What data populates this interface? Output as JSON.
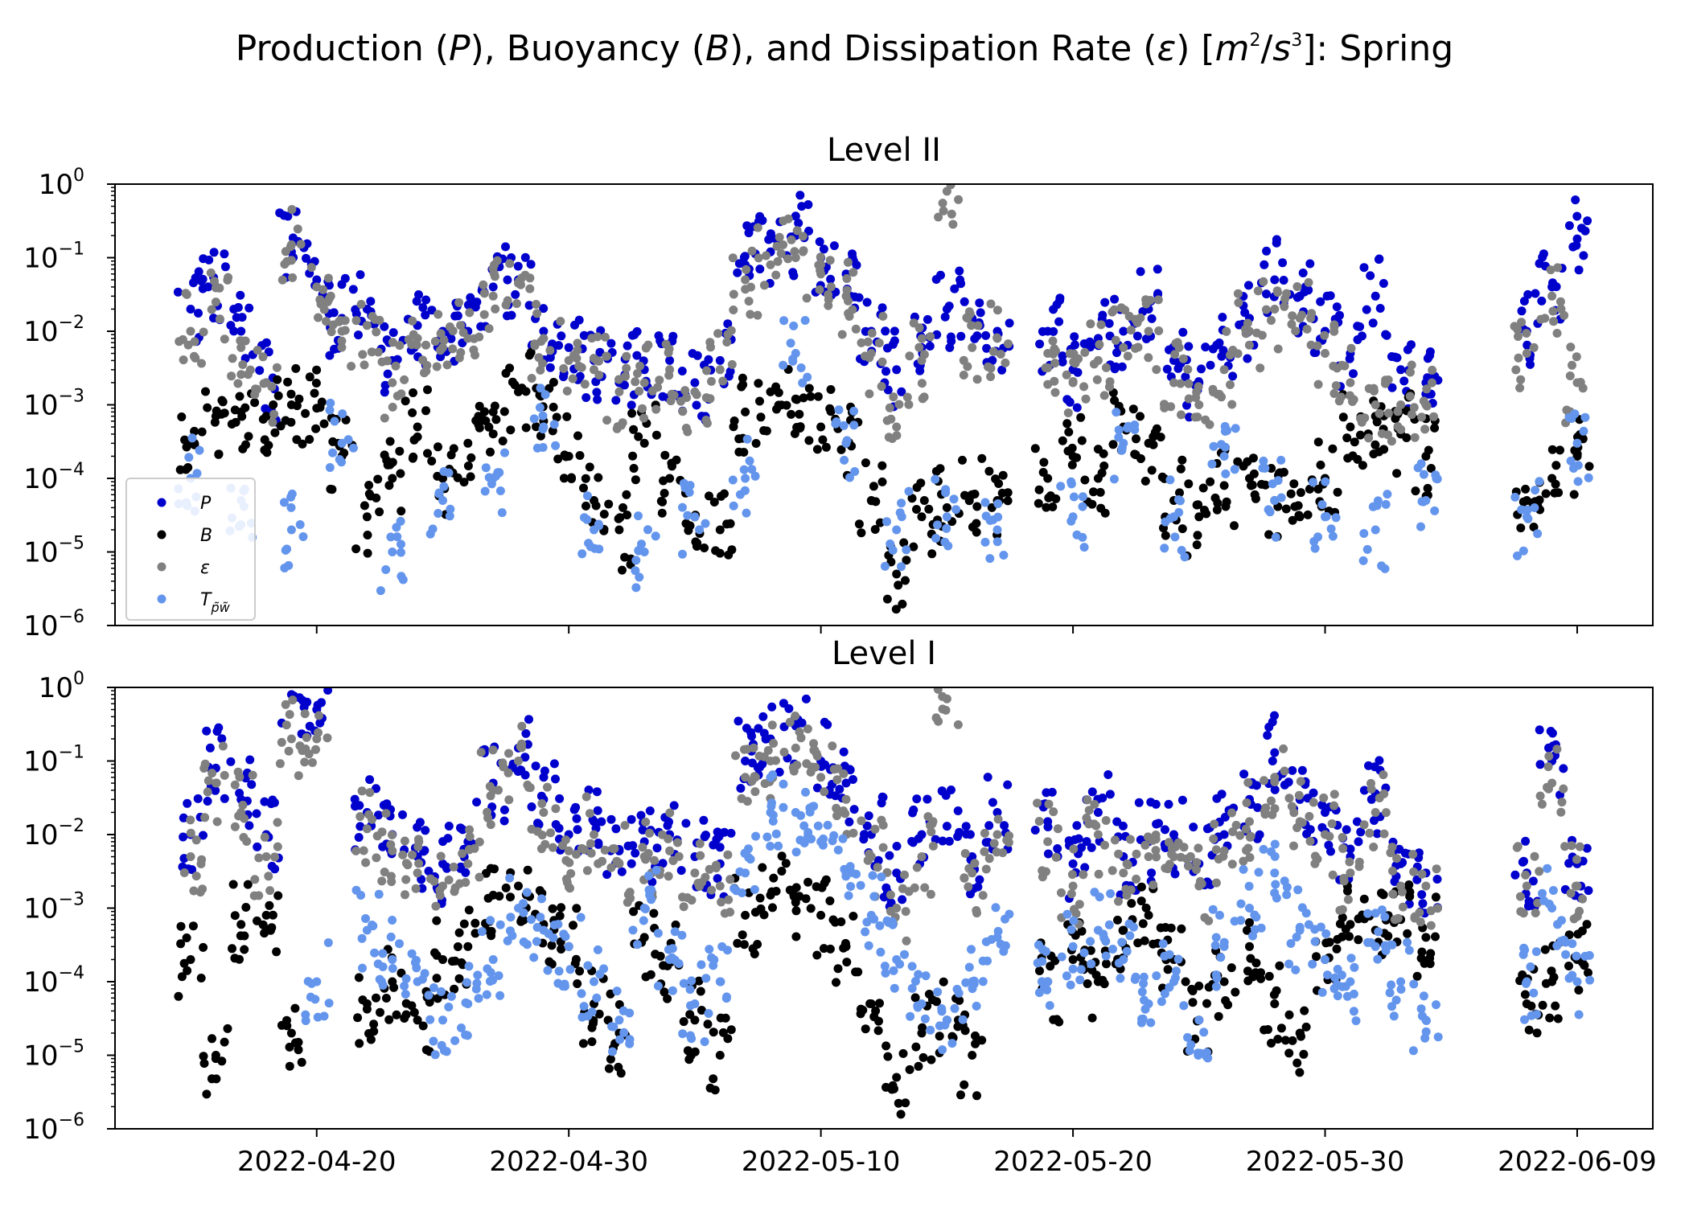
{
  "figure": {
    "title": "Production (P), Buoyancy (B), and Dissipation Rate (ε) [m²/s³]: Spring"
  },
  "chart_data": [
    {
      "type": "scatter",
      "title": "Level II",
      "xlabel": "",
      "ylabel": "",
      "yscale": "log",
      "ylim": [
        1e-06,
        1
      ],
      "xlim": [
        "2022-04-12",
        "2022-06-12"
      ],
      "x_ticks": [
        "2022-04-20",
        "2022-04-30",
        "2022-05-10",
        "2022-05-20",
        "2022-05-30",
        "2022-06-09"
      ],
      "y_ticks": [
        "10^0",
        "10^-1",
        "10^-2",
        "10^-3",
        "10^-4",
        "10^-5",
        "10^-6"
      ],
      "legend": {
        "position": "lower-left",
        "entries": [
          "P",
          "B",
          "ε",
          "T_{p̃w̃}"
        ]
      },
      "grid": false,
      "series": [
        {
          "name": "P",
          "color": "#0000cd",
          "x": [
            "2022-04-15",
            "2022-04-16",
            "2022-04-17",
            "2022-04-18",
            "2022-04-19",
            "2022-04-20",
            "2022-04-21",
            "2022-04-22",
            "2022-04-23",
            "2022-04-24",
            "2022-04-25",
            "2022-04-26",
            "2022-04-27",
            "2022-04-28",
            "2022-04-29",
            "2022-04-30",
            "2022-05-01",
            "2022-05-02",
            "2022-05-03",
            "2022-05-04",
            "2022-05-05",
            "2022-05-06",
            "2022-05-07",
            "2022-05-08",
            "2022-05-09",
            "2022-05-10",
            "2022-05-11",
            "2022-05-12",
            "2022-05-13",
            "2022-05-14",
            "2022-05-15",
            "2022-05-16",
            "2022-05-17",
            "2022-05-19",
            "2022-05-20",
            "2022-05-21",
            "2022-05-22",
            "2022-05-23",
            "2022-05-24",
            "2022-05-25",
            "2022-05-26",
            "2022-05-27",
            "2022-05-28",
            "2022-05-29",
            "2022-05-30",
            "2022-05-31",
            "2022-06-01",
            "2022-06-02",
            "2022-06-03",
            "2022-06-07",
            "2022-06-08",
            "2022-06-09"
          ],
          "y": [
            0.02,
            0.04,
            0.01,
            0.002,
            0.12,
            0.05,
            0.015,
            0.02,
            0.004,
            0.012,
            0.01,
            0.01,
            0.04,
            0.05,
            0.01,
            0.006,
            0.004,
            0.002,
            0.003,
            0.004,
            0.002,
            0.004,
            0.08,
            0.12,
            0.2,
            0.1,
            0.06,
            0.01,
            0.003,
            0.006,
            0.02,
            0.015,
            0.01,
            0.01,
            0.003,
            0.008,
            0.01,
            0.02,
            0.004,
            0.002,
            0.005,
            0.015,
            0.05,
            0.03,
            0.01,
            0.005,
            0.03,
            0.003,
            0.002,
            0.01,
            0.04,
            0.18
          ]
        },
        {
          "name": "B",
          "color": "#000000",
          "x": [
            "2022-04-15",
            "2022-04-16",
            "2022-04-17",
            "2022-04-18",
            "2022-04-19",
            "2022-04-20",
            "2022-04-21",
            "2022-04-22",
            "2022-04-23",
            "2022-04-24",
            "2022-04-25",
            "2022-04-26",
            "2022-04-27",
            "2022-04-28",
            "2022-04-29",
            "2022-04-30",
            "2022-05-01",
            "2022-05-02",
            "2022-05-03",
            "2022-05-04",
            "2022-05-05",
            "2022-05-06",
            "2022-05-07",
            "2022-05-08",
            "2022-05-09",
            "2022-05-10",
            "2022-05-11",
            "2022-05-12",
            "2022-05-13",
            "2022-05-14",
            "2022-05-15",
            "2022-05-16",
            "2022-05-17",
            "2022-05-19",
            "2022-05-20",
            "2022-05-21",
            "2022-05-22",
            "2022-05-23",
            "2022-05-24",
            "2022-05-25",
            "2022-05-26",
            "2022-05-27",
            "2022-05-28",
            "2022-05-29",
            "2022-05-30",
            "2022-05-31",
            "2022-06-01",
            "2022-06-02",
            "2022-06-03",
            "2022-06-07",
            "2022-06-08",
            "2022-06-09"
          ],
          "y": [
            0.0003,
            0.0007,
            0.0008,
            0.0007,
            0.001,
            0.0009,
            0.0002,
            3e-05,
            0.0001,
            0.0005,
            0.0001,
            0.0003,
            0.0008,
            0.0015,
            0.0006,
            0.0002,
            5e-05,
            2e-05,
            0.0003,
            0.0001,
            3e-05,
            2e-05,
            0.0008,
            0.0015,
            0.0012,
            0.0005,
            0.0003,
            5e-05,
            5e-06,
            3e-05,
            4e-05,
            6e-05,
            5e-05,
            0.0001,
            0.0002,
            0.0001,
            0.0005,
            0.0003,
            5e-05,
            3e-05,
            8e-05,
            0.0001,
            5e-05,
            3e-05,
            0.0001,
            0.0005,
            0.0007,
            0.0004,
            0.0002,
            5e-05,
            0.0001,
            0.0002
          ]
        },
        {
          "name": "ε",
          "color": "#808080",
          "x": [
            "2022-04-15",
            "2022-04-16",
            "2022-04-17",
            "2022-04-18",
            "2022-04-19",
            "2022-04-20",
            "2022-04-21",
            "2022-04-22",
            "2022-04-23",
            "2022-04-24",
            "2022-04-25",
            "2022-04-26",
            "2022-04-27",
            "2022-04-28",
            "2022-04-29",
            "2022-04-30",
            "2022-05-01",
            "2022-05-02",
            "2022-05-03",
            "2022-05-04",
            "2022-05-05",
            "2022-05-06",
            "2022-05-07",
            "2022-05-08",
            "2022-05-09",
            "2022-05-10",
            "2022-05-11",
            "2022-05-12",
            "2022-05-13",
            "2022-05-14",
            "2022-05-15",
            "2022-05-16",
            "2022-05-17",
            "2022-05-19",
            "2022-05-20",
            "2022-05-21",
            "2022-05-22",
            "2022-05-23",
            "2022-05-24",
            "2022-05-25",
            "2022-05-26",
            "2022-05-27",
            "2022-05-28",
            "2022-05-29",
            "2022-05-30",
            "2022-05-31",
            "2022-06-01",
            "2022-06-02",
            "2022-06-03",
            "2022-06-07",
            "2022-06-08",
            "2022-06-09"
          ],
          "y": [
            0.01,
            0.025,
            0.006,
            0.002,
            0.15,
            0.04,
            0.01,
            0.012,
            0.002,
            0.008,
            0.006,
            0.008,
            0.03,
            0.045,
            0.008,
            0.004,
            0.003,
            0.0015,
            0.002,
            0.003,
            0.0015,
            0.003,
            0.05,
            0.08,
            0.1,
            0.06,
            0.03,
            0.005,
            0.0005,
            0.004,
            0.8,
            0.006,
            0.008,
            0.005,
            0.002,
            0.004,
            0.006,
            0.01,
            0.002,
            0.001,
            0.003,
            0.01,
            0.02,
            0.015,
            0.005,
            0.002,
            0.001,
            0.001,
            0.001,
            0.005,
            0.03,
            0.002
          ]
        },
        {
          "name": "T_{p̃w̃}",
          "color": "#6495ed",
          "x": [
            "2022-04-15",
            "2022-04-17",
            "2022-04-19",
            "2022-04-21",
            "2022-04-23",
            "2022-04-25",
            "2022-04-27",
            "2022-04-29",
            "2022-05-01",
            "2022-05-03",
            "2022-05-05",
            "2022-05-07",
            "2022-05-09",
            "2022-05-11",
            "2022-05-13",
            "2022-05-15",
            "2022-05-17",
            "2022-05-20",
            "2022-05-22",
            "2022-05-24",
            "2022-05-26",
            "2022-05-28",
            "2022-05-30",
            "2022-06-01",
            "2022-06-03",
            "2022-06-07",
            "2022-06-09"
          ],
          "y": [
            0.0001,
            5e-05,
            2e-05,
            0.0003,
            1e-05,
            5e-05,
            0.0001,
            0.0005,
            2e-05,
            1e-05,
            3e-05,
            0.0001,
            0.005,
            0.0003,
            2e-05,
            3e-05,
            2e-05,
            3e-05,
            0.0003,
            3e-05,
            0.0002,
            5e-05,
            3e-05,
            2e-05,
            5e-05,
            3e-05,
            0.0003
          ]
        }
      ]
    },
    {
      "type": "scatter",
      "title": "Level I",
      "xlabel": "",
      "ylabel": "",
      "yscale": "log",
      "ylim": [
        1e-06,
        1
      ],
      "xlim": [
        "2022-04-12",
        "2022-06-12"
      ],
      "x_ticks": [
        "2022-04-20",
        "2022-04-30",
        "2022-05-10",
        "2022-05-20",
        "2022-05-30",
        "2022-06-09"
      ],
      "y_ticks": [
        "10^0",
        "10^-1",
        "10^-2",
        "10^-3",
        "10^-4",
        "10^-5",
        "10^-6"
      ],
      "grid": false,
      "series": [
        {
          "name": "P",
          "color": "#0000cd",
          "x": [
            "2022-04-15",
            "2022-04-16",
            "2022-04-17",
            "2022-04-18",
            "2022-04-19",
            "2022-04-20",
            "2022-04-22",
            "2022-04-23",
            "2022-04-24",
            "2022-04-25",
            "2022-04-26",
            "2022-04-27",
            "2022-04-28",
            "2022-04-29",
            "2022-04-30",
            "2022-05-01",
            "2022-05-02",
            "2022-05-03",
            "2022-05-04",
            "2022-05-05",
            "2022-05-06",
            "2022-05-07",
            "2022-05-08",
            "2022-05-09",
            "2022-05-10",
            "2022-05-11",
            "2022-05-12",
            "2022-05-13",
            "2022-05-14",
            "2022-05-15",
            "2022-05-16",
            "2022-05-17",
            "2022-05-19",
            "2022-05-20",
            "2022-05-21",
            "2022-05-22",
            "2022-05-23",
            "2022-05-24",
            "2022-05-25",
            "2022-05-26",
            "2022-05-27",
            "2022-05-28",
            "2022-05-29",
            "2022-05-30",
            "2022-05-31",
            "2022-06-01",
            "2022-06-02",
            "2022-06-03",
            "2022-06-07",
            "2022-06-08",
            "2022-06-09"
          ],
          "y": [
            0.01,
            0.08,
            0.03,
            0.01,
            0.8,
            0.5,
            0.02,
            0.01,
            0.005,
            0.004,
            0.008,
            0.05,
            0.15,
            0.03,
            0.01,
            0.015,
            0.006,
            0.008,
            0.01,
            0.005,
            0.004,
            0.1,
            0.2,
            0.3,
            0.1,
            0.05,
            0.01,
            0.003,
            0.01,
            0.013,
            0.005,
            0.02,
            0.015,
            0.004,
            0.02,
            0.005,
            0.008,
            0.01,
            0.004,
            0.01,
            0.03,
            0.13,
            0.03,
            0.02,
            0.005,
            0.036,
            0.004,
            0.003,
            0.003,
            0.1,
            0.004
          ]
        },
        {
          "name": "B",
          "color": "#000000",
          "x": [
            "2022-04-15",
            "2022-04-16",
            "2022-04-17",
            "2022-04-18",
            "2022-04-19",
            "2022-04-22",
            "2022-04-23",
            "2022-04-24",
            "2022-04-25",
            "2022-04-26",
            "2022-04-27",
            "2022-04-28",
            "2022-04-29",
            "2022-04-30",
            "2022-05-01",
            "2022-05-02",
            "2022-05-03",
            "2022-05-04",
            "2022-05-05",
            "2022-05-06",
            "2022-05-07",
            "2022-05-08",
            "2022-05-09",
            "2022-05-10",
            "2022-05-11",
            "2022-05-12",
            "2022-05-13",
            "2022-05-14",
            "2022-05-15",
            "2022-05-16",
            "2022-05-19",
            "2022-05-20",
            "2022-05-21",
            "2022-05-22",
            "2022-05-23",
            "2022-05-24",
            "2022-05-25",
            "2022-05-26",
            "2022-05-27",
            "2022-05-28",
            "2022-05-29",
            "2022-05-30",
            "2022-05-31",
            "2022-06-01",
            "2022-06-02",
            "2022-06-03",
            "2022-06-07",
            "2022-06-08",
            "2022-06-09"
          ],
          "y": [
            0.0002,
            1e-05,
            0.0006,
            0.0008,
            2e-05,
            5e-05,
            0.0001,
            3e-05,
            0.0002,
            0.0003,
            0.0015,
            0.002,
            0.0006,
            0.0003,
            5e-05,
            2e-05,
            0.0004,
            0.0002,
            3e-05,
            1e-05,
            0.0008,
            0.0015,
            0.0012,
            0.0008,
            0.0003,
            5e-05,
            5e-06,
            2e-05,
            3e-05,
            1e-05,
            0.0001,
            0.0002,
            0.0001,
            0.0005,
            0.0008,
            0.0002,
            3e-05,
            0.0001,
            0.0003,
            5e-05,
            2e-05,
            0.0002,
            0.0006,
            0.0005,
            0.0007,
            0.0004,
            5e-05,
            0.0001,
            0.0002
          ]
        },
        {
          "name": "ε",
          "color": "#808080",
          "x": [
            "2022-04-15",
            "2022-04-16",
            "2022-04-17",
            "2022-04-18",
            "2022-04-19",
            "2022-04-20",
            "2022-04-22",
            "2022-04-23",
            "2022-04-24",
            "2022-04-25",
            "2022-04-26",
            "2022-04-27",
            "2022-04-28",
            "2022-04-29",
            "2022-04-30",
            "2022-05-01",
            "2022-05-02",
            "2022-05-03",
            "2022-05-04",
            "2022-05-05",
            "2022-05-06",
            "2022-05-07",
            "2022-05-08",
            "2022-05-09",
            "2022-05-10",
            "2022-05-11",
            "2022-05-12",
            "2022-05-13",
            "2022-05-14",
            "2022-05-15",
            "2022-05-16",
            "2022-05-17",
            "2022-05-19",
            "2022-05-20",
            "2022-05-21",
            "2022-05-22",
            "2022-05-23",
            "2022-05-24",
            "2022-05-25",
            "2022-05-26",
            "2022-05-27",
            "2022-05-28",
            "2022-05-29",
            "2022-05-30",
            "2022-05-31",
            "2022-06-01",
            "2022-06-02",
            "2022-06-03",
            "2022-06-07",
            "2022-06-08",
            "2022-06-09"
          ],
          "y": [
            0.005,
            0.05,
            0.02,
            0.005,
            0.2,
            0.2,
            0.012,
            0.006,
            0.003,
            0.002,
            0.004,
            0.04,
            0.1,
            0.02,
            0.006,
            0.01,
            0.004,
            0.005,
            0.006,
            0.003,
            0.002,
            0.06,
            0.1,
            0.15,
            0.06,
            0.03,
            0.005,
            0.001,
            0.005,
            0.7,
            0.003,
            0.01,
            0.008,
            0.002,
            0.01,
            0.003,
            0.005,
            0.005,
            0.002,
            0.006,
            0.015,
            0.06,
            0.015,
            0.01,
            0.003,
            0.02,
            0.002,
            0.002,
            0.002,
            0.05,
            0.002
          ]
        },
        {
          "name": "T_{p̃w̃}",
          "color": "#6495ed",
          "x": [
            "2022-04-20",
            "2022-04-22",
            "2022-04-23",
            "2022-04-24",
            "2022-04-25",
            "2022-04-26",
            "2022-04-27",
            "2022-04-28",
            "2022-04-29",
            "2022-04-30",
            "2022-05-01",
            "2022-05-02",
            "2022-05-03",
            "2022-05-04",
            "2022-05-05",
            "2022-05-06",
            "2022-05-07",
            "2022-05-08",
            "2022-05-09",
            "2022-05-10",
            "2022-05-11",
            "2022-05-12",
            "2022-05-13",
            "2022-05-14",
            "2022-05-15",
            "2022-05-16",
            "2022-05-17",
            "2022-05-19",
            "2022-05-20",
            "2022-05-21",
            "2022-05-22",
            "2022-05-23",
            "2022-05-24",
            "2022-05-25",
            "2022-05-26",
            "2022-05-27",
            "2022-05-28",
            "2022-05-29",
            "2022-05-30",
            "2022-05-31",
            "2022-06-01",
            "2022-06-02",
            "2022-06-03",
            "2022-06-07",
            "2022-06-08",
            "2022-06-09"
          ],
          "y": [
            0.0001,
            0.0005,
            0.0002,
            0.0001,
            3e-05,
            5e-05,
            0.0002,
            0.001,
            0.0005,
            0.0003,
            0.0001,
            3e-05,
            0.001,
            0.0002,
            5e-05,
            0.0001,
            0.003,
            0.02,
            0.02,
            0.008,
            0.003,
            0.0008,
            0.0002,
            5e-05,
            3e-05,
            0.0001,
            0.0004,
            0.0001,
            0.0003,
            0.0005,
            0.0002,
            5e-05,
            0.0001,
            3e-05,
            0.0003,
            0.001,
            0.003,
            0.0005,
            0.0002,
            0.0001,
            0.0003,
            0.0001,
            3e-05,
            0.0001,
            0.001,
            0.0001
          ]
        }
      ]
    }
  ]
}
